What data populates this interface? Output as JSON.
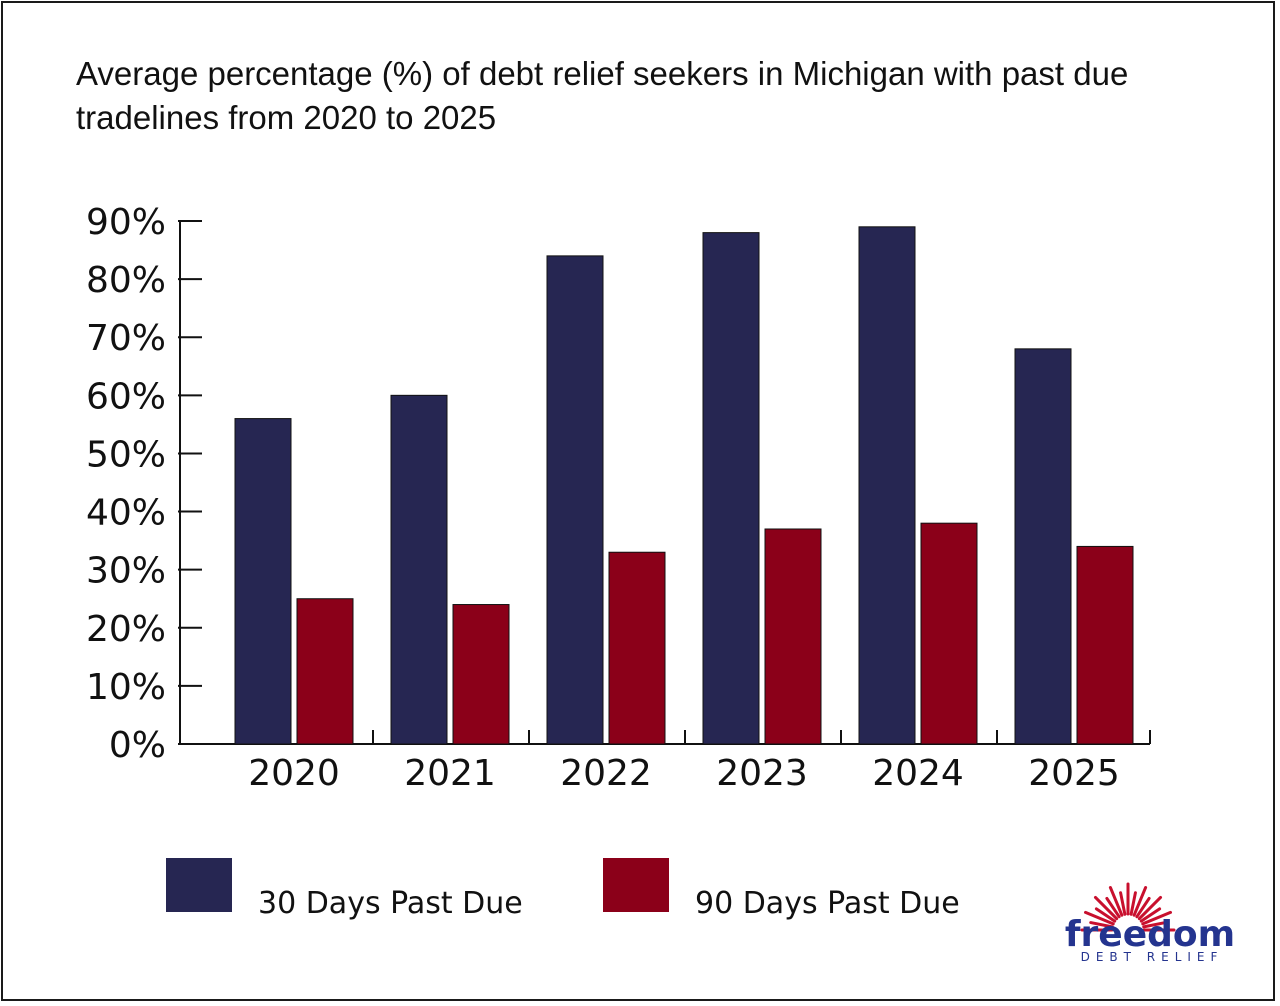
{
  "chart_data": {
    "type": "bar",
    "title": "Average percentage (%) of debt relief seekers in Michigan with past due tradelines from 2020 to 2025",
    "categories": [
      "2020",
      "2021",
      "2022",
      "2023",
      "2024",
      "2025"
    ],
    "series": [
      {
        "name": "30 Days Past Due",
        "color": "#262652",
        "values": [
          56,
          60,
          84,
          88,
          89,
          68
        ]
      },
      {
        "name": "90 Days Past Due",
        "color": "#8b0019",
        "values": [
          25,
          24,
          33,
          37,
          38,
          34
        ]
      }
    ],
    "ylim": [
      0,
      90
    ],
    "yticks": [
      "0%",
      "10%",
      "20%",
      "30%",
      "40%",
      "50%",
      "60%",
      "70%",
      "80%",
      "90%"
    ],
    "grid": false,
    "legend": "bottom"
  },
  "logo": {
    "word": "freedom",
    "subtitle": "DEBT RELIEF",
    "word_color": "#24348f",
    "ray_color": "#c8102e"
  }
}
